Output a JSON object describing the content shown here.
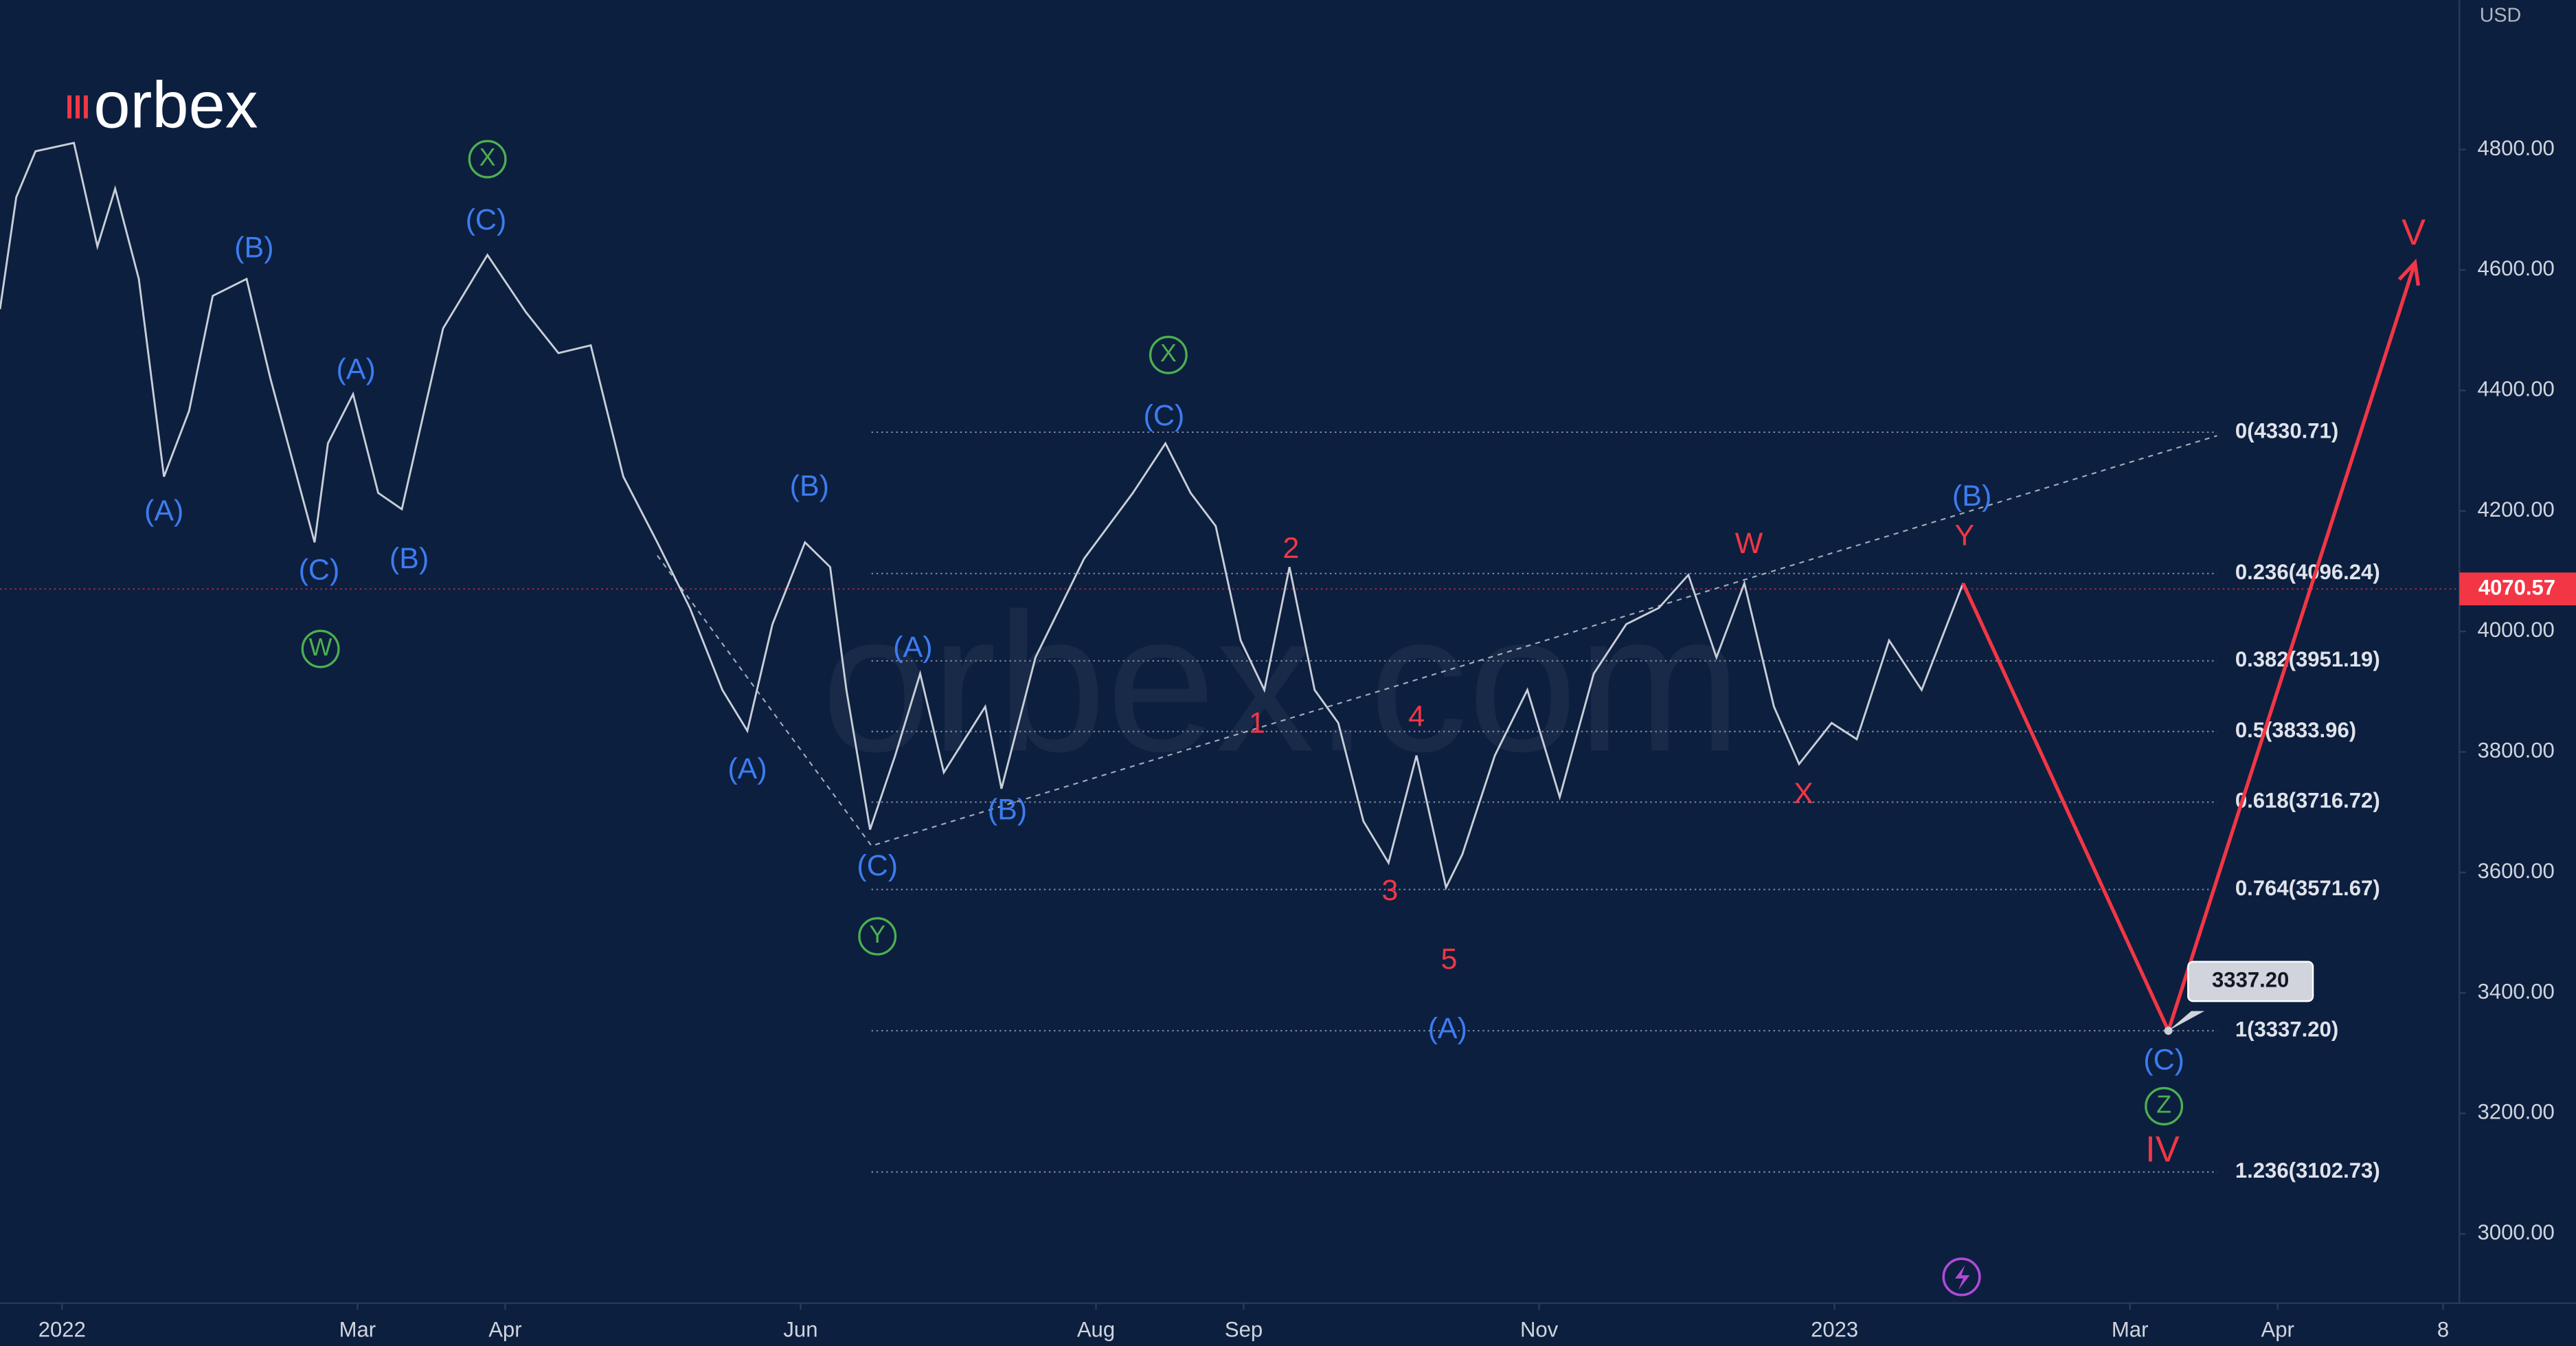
{
  "chart_data": {
    "type": "line",
    "brand": "orbex",
    "watermark": "orbex.com",
    "currency": "USD",
    "background": "#0c1f3f",
    "xlim": [
      -0.42,
      16.23
    ],
    "ylim": [
      2885,
      5048
    ],
    "grid": false,
    "xticks": [
      {
        "value": 0,
        "label": "2022"
      },
      {
        "value": 2,
        "label": "Mar"
      },
      {
        "value": 3,
        "label": "Apr"
      },
      {
        "value": 5,
        "label": "Jun"
      },
      {
        "value": 7,
        "label": "Aug"
      },
      {
        "value": 8,
        "label": "Sep"
      },
      {
        "value": 10,
        "label": "Nov"
      },
      {
        "value": 12,
        "label": "2023"
      },
      {
        "value": 14,
        "label": "Mar"
      },
      {
        "value": 15,
        "label": "Apr"
      },
      {
        "value": 16.12,
        "label": "8"
      }
    ],
    "yticks": [
      {
        "value": 3000,
        "label": "3000.00"
      },
      {
        "value": 3200,
        "label": "3200.00"
      },
      {
        "value": 3400,
        "label": "3400.00"
      },
      {
        "value": 3600,
        "label": "3600.00"
      },
      {
        "value": 3800,
        "label": "3800.00"
      },
      {
        "value": 4000,
        "label": "4000.00"
      },
      {
        "value": 4200,
        "label": "4200.00"
      },
      {
        "value": 4400,
        "label": "4400.00"
      },
      {
        "value": 4600,
        "label": "4600.00"
      },
      {
        "value": 4800,
        "label": "4800.00"
      }
    ],
    "series": [
      {
        "color": "#c9ced8",
        "x": [
          -0.42,
          -0.31,
          -0.18,
          0.08,
          0.24,
          0.36,
          0.52,
          0.69,
          0.86,
          1.02,
          1.25,
          1.41,
          1.71,
          1.8,
          1.97,
          2.14,
          2.3,
          2.58,
          2.88,
          3.14,
          3.36,
          3.58,
          3.8,
          4.03,
          4.25,
          4.47,
          4.64,
          4.81,
          5.03,
          5.2,
          5.31,
          5.47,
          5.64,
          5.81,
          5.97,
          6.25,
          6.36,
          6.59,
          6.92,
          7.25,
          7.47,
          7.64,
          7.81,
          7.98,
          8.14,
          8.31,
          8.48,
          8.64,
          8.81,
          8.98,
          9.17,
          9.37,
          9.48,
          9.7,
          9.92,
          10.14,
          10.37,
          10.59,
          10.81,
          11.01,
          11.2,
          11.39,
          11.59,
          11.76,
          11.98,
          12.15,
          12.37,
          12.59,
          12.87
        ],
        "values": [
          4535,
          4721,
          4797,
          4811,
          4639,
          4735,
          4585,
          4257,
          4366,
          4557,
          4585,
          4421,
          4148,
          4312,
          4394,
          4230,
          4203,
          4503,
          4625,
          4530,
          4462,
          4475,
          4257,
          4148,
          4039,
          3903,
          3835,
          4012,
          4148,
          4107,
          3903,
          3671,
          3794,
          3930,
          3766,
          3875,
          3739,
          3957,
          4121,
          4230,
          4312,
          4230,
          4175,
          3985,
          3903,
          4107,
          3903,
          3848,
          3685,
          3616,
          3794,
          3575,
          3630,
          3794,
          3903,
          3725,
          3930,
          4012,
          4039,
          4094,
          3957,
          4080,
          3875,
          3780,
          3848,
          3821,
          3985,
          3903,
          4080
        ]
      }
    ],
    "forecast": {
      "color": "#f23645",
      "x": [
        12.87,
        14.26,
        15.93
      ],
      "values": [
        4080,
        3337.2,
        4612
      ]
    },
    "trend_line": {
      "color": "#c9ced8",
      "x": [
        4.03,
        5.48,
        14.59
      ],
      "values": [
        4126,
        3644,
        4325
      ]
    },
    "fib_levels": {
      "x_start": 5.48,
      "x_end": 14.59,
      "levels": [
        {
          "value": 4330.71,
          "label": "0(4330.71)"
        },
        {
          "value": 4096.24,
          "label": "0.236(4096.24)"
        },
        {
          "value": 3951.19,
          "label": "0.382(3951.19)"
        },
        {
          "value": 3833.96,
          "label": "0.5(3833.96)"
        },
        {
          "value": 3716.72,
          "label": "0.618(3716.72)"
        },
        {
          "value": 3571.67,
          "label": "0.764(3571.67)"
        },
        {
          "value": 3337.2,
          "label": "1(3337.20)"
        },
        {
          "value": 3102.73,
          "label": "1.236(3102.73)"
        }
      ]
    },
    "last_price": {
      "value": 4070.57,
      "label": "4070.57",
      "color": "#f23645"
    },
    "target": {
      "x": 14.26,
      "value": 3337.2,
      "label": "3337.20"
    },
    "annotations": [
      {
        "text": "(A)",
        "x": 0.69,
        "y": 4197,
        "color": "#3d7cf0"
      },
      {
        "text": "(B)",
        "x": 1.3,
        "y": 4634,
        "color": "#3d7cf0"
      },
      {
        "text": "(C)",
        "x": 1.74,
        "y": 4099,
        "color": "#3d7cf0"
      },
      {
        "text": "(A)",
        "x": 1.99,
        "y": 4432,
        "color": "#3d7cf0"
      },
      {
        "text": "(B)",
        "x": 2.35,
        "y": 4118,
        "color": "#3d7cf0"
      },
      {
        "text": "(C)",
        "x": 2.87,
        "y": 4680,
        "color": "#3d7cf0"
      },
      {
        "text": "(B)",
        "x": 5.06,
        "y": 4238,
        "color": "#3d7cf0"
      },
      {
        "text": "(A)",
        "x": 5.76,
        "y": 3971,
        "color": "#3d7cf0"
      },
      {
        "text": "(A)",
        "x": 4.64,
        "y": 3769,
        "color": "#3d7cf0"
      },
      {
        "text": "(C)",
        "x": 5.52,
        "y": 3608,
        "color": "#3d7cf0"
      },
      {
        "text": "(B)",
        "x": 6.4,
        "y": 3701,
        "color": "#3d7cf0"
      },
      {
        "text": "(C)",
        "x": 7.46,
        "y": 4355,
        "color": "#3d7cf0"
      },
      {
        "text": "(A)",
        "x": 9.38,
        "y": 3338,
        "color": "#3d7cf0"
      },
      {
        "text": "(B)",
        "x": 12.93,
        "y": 4222,
        "color": "#3d7cf0"
      },
      {
        "text": "(C)",
        "x": 14.23,
        "y": 3286,
        "color": "#3d7cf0"
      },
      {
        "text": "2",
        "x": 8.32,
        "y": 4135,
        "color": "#f23645"
      },
      {
        "text": "1",
        "x": 8.09,
        "y": 3845,
        "color": "#f23645"
      },
      {
        "text": "4",
        "x": 9.17,
        "y": 3856,
        "color": "#f23645"
      },
      {
        "text": "3",
        "x": 8.99,
        "y": 3567,
        "color": "#f23645"
      },
      {
        "text": "5",
        "x": 9.39,
        "y": 3453,
        "color": "#f23645"
      },
      {
        "text": "W",
        "x": 11.42,
        "y": 4143,
        "color": "#f23645"
      },
      {
        "text": "Y",
        "x": 12.88,
        "y": 4156,
        "color": "#f23645"
      },
      {
        "text": "X",
        "x": 11.79,
        "y": 3728,
        "color": "#f23645"
      },
      {
        "text": "IV",
        "x": 14.22,
        "y": 3136,
        "color": "#f23645"
      },
      {
        "text": "V",
        "x": 15.92,
        "y": 4658,
        "color": "#f23645"
      },
      {
        "text": "X",
        "x": 2.88,
        "y": 4784,
        "color": "#4caf50",
        "circled": true
      },
      {
        "text": "W",
        "x": 1.75,
        "y": 3971,
        "color": "#4caf50",
        "circled": true
      },
      {
        "text": "X",
        "x": 7.49,
        "y": 4459,
        "color": "#4caf50",
        "circled": true
      },
      {
        "text": "Y",
        "x": 5.52,
        "y": 3494,
        "color": "#4caf50",
        "circled": true
      },
      {
        "text": "Z",
        "x": 14.23,
        "y": 3212,
        "color": "#4caf50",
        "circled": true
      }
    ]
  }
}
